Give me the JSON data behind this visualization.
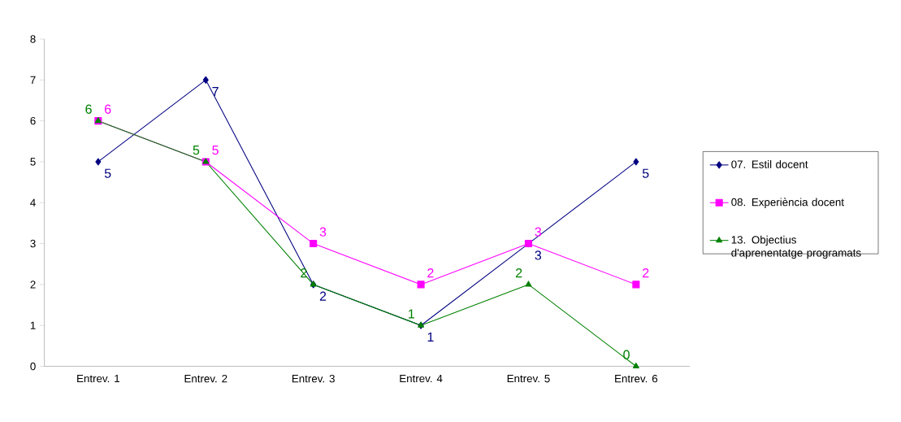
{
  "chart_data": {
    "type": "line",
    "categories": [
      "Entrev. 1",
      "Entrev. 2",
      "Entrev. 3",
      "Entrev. 4",
      "Entrev. 5",
      "Entrev. 6"
    ],
    "series": [
      {
        "name": "07. Estil docent",
        "color": "#000080",
        "marker": "diamond",
        "values": [
          5,
          7,
          2,
          1,
          3,
          5
        ]
      },
      {
        "name": "08. Experiència docent",
        "color": "#ff00ff",
        "marker": "square",
        "values": [
          6,
          5,
          3,
          2,
          3,
          2
        ]
      },
      {
        "name": "13. Objectius d'aprenentatge programats",
        "color": "#008000",
        "marker": "triangle",
        "values": [
          6,
          5,
          2,
          1,
          2,
          0
        ]
      }
    ],
    "ylim": [
      0,
      8
    ],
    "yticks": [
      0,
      1,
      2,
      3,
      4,
      5,
      6,
      7,
      8
    ],
    "data_labels": true,
    "legend": "right",
    "grid": false,
    "line_style": "solid"
  }
}
